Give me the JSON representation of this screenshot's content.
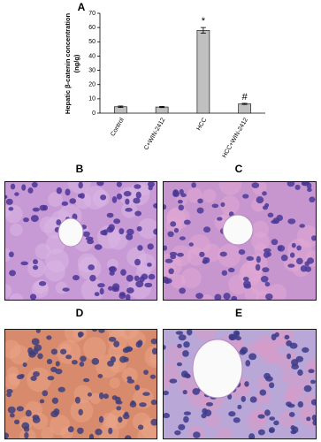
{
  "chart_data": {
    "type": "bar",
    "panel_label": "A",
    "y_label_lines": [
      "Hepatic β-catenin concentration",
      "(ng/g)"
    ],
    "categories": [
      "Control",
      "C+WIN-2412",
      "HCC",
      "HCC+WIN-2412"
    ],
    "values": [
      4.5,
      4.3,
      58,
      6.5
    ],
    "errors": [
      0.5,
      0.4,
      2,
      0.4
    ],
    "annotations": [
      {
        "category": "HCC",
        "text": "*"
      },
      {
        "category": "HCC+WIN-2412",
        "text": "#"
      }
    ],
    "color": "#c0c0c0",
    "ylim": [
      0,
      70
    ],
    "yticks": [
      0,
      10,
      20,
      30,
      40,
      50,
      60,
      70
    ],
    "grid": false
  },
  "panels": [
    {
      "label": "B"
    },
    {
      "label": "C"
    },
    {
      "label": "D"
    },
    {
      "label": "E"
    }
  ]
}
